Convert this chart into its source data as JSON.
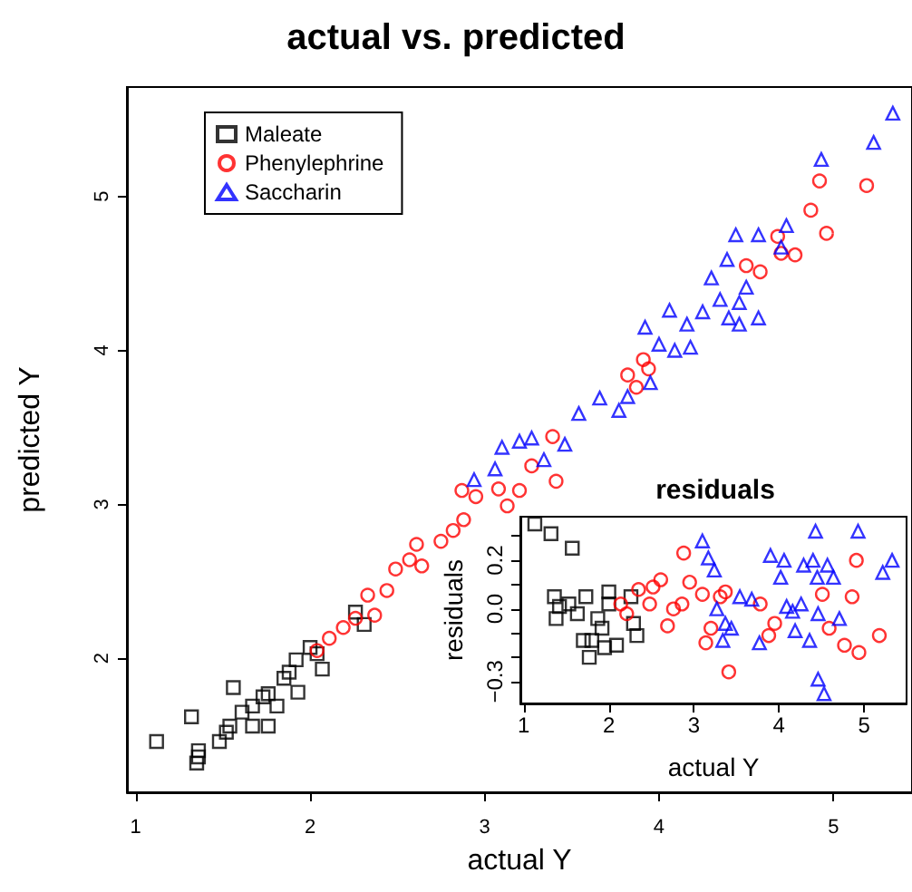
{
  "chart_data": [
    {
      "type": "scatter",
      "title": "actual vs. predicted",
      "xlabel": "actual Y",
      "ylabel": "predicted Y",
      "xlim": [
        0.95,
        5.45
      ],
      "ylim": [
        1.13,
        5.71
      ],
      "xticks": [
        1,
        2,
        3,
        4,
        5
      ],
      "yticks": [
        2,
        3,
        4,
        5
      ],
      "grid": false,
      "legend": "top left",
      "series": [
        {
          "name": "Maleate",
          "color": "#000000",
          "marker": "square",
          "x": [
            1.12,
            1.32,
            1.56,
            1.35,
            1.36,
            1.48,
            1.54,
            1.61,
            1.67,
            1.67,
            1.76,
            1.76,
            1.81,
            1.85,
            1.92,
            1.93,
            1.88,
            2.0,
            2.07,
            2.04,
            2.26,
            2.31,
            1.73,
            1.52,
            1.36
          ],
          "values": [
            1.46,
            1.62,
            1.81,
            1.32,
            1.4,
            1.46,
            1.56,
            1.65,
            1.69,
            1.56,
            1.56,
            1.77,
            1.69,
            1.87,
            1.99,
            1.78,
            1.91,
            2.07,
            1.93,
            2.03,
            2.3,
            2.22,
            1.75,
            1.52,
            1.36
          ]
        },
        {
          "name": "Phenylephrine",
          "color": "#ff0000",
          "marker": "circle",
          "x": [
            2.04,
            2.11,
            2.19,
            2.26,
            2.37,
            2.33,
            2.44,
            2.49,
            2.57,
            2.61,
            2.75,
            2.64,
            2.82,
            2.88,
            2.87,
            2.95,
            3.08,
            3.13,
            3.2,
            3.27,
            3.39,
            3.41,
            3.82,
            3.91,
            3.94,
            3.87,
            4.5,
            4.58,
            4.7,
            4.78,
            4.68,
            4.87,
            4.96,
            4.92,
            5.19
          ],
          "values": [
            2.05,
            2.13,
            2.2,
            2.26,
            2.28,
            2.41,
            2.44,
            2.58,
            2.64,
            2.74,
            2.76,
            2.6,
            2.83,
            2.9,
            3.09,
            3.05,
            3.1,
            2.99,
            3.09,
            3.25,
            3.44,
            3.15,
            3.84,
            3.94,
            3.88,
            3.76,
            4.55,
            4.51,
            4.63,
            4.62,
            4.74,
            4.91,
            4.76,
            5.1,
            5.07
          ]
        },
        {
          "name": "Saccharin",
          "color": "#0000ff",
          "marker": "triangle",
          "x": [
            2.94,
            3.06,
            3.1,
            3.2,
            3.27,
            3.34,
            3.46,
            3.54,
            3.66,
            3.77,
            3.82,
            3.95,
            3.92,
            4.0,
            4.06,
            4.09,
            4.18,
            4.16,
            4.25,
            4.3,
            4.35,
            4.39,
            4.4,
            4.46,
            4.46,
            4.5,
            4.57,
            4.44,
            4.57,
            4.73,
            4.7,
            4.93,
            5.23,
            5.34
          ],
          "values": [
            3.16,
            3.23,
            3.37,
            3.41,
            3.43,
            3.29,
            3.39,
            3.59,
            3.69,
            3.61,
            3.7,
            3.79,
            4.15,
            4.04,
            4.26,
            4.0,
            4.02,
            4.17,
            4.25,
            4.47,
            4.33,
            4.59,
            4.21,
            4.31,
            4.17,
            4.41,
            4.21,
            4.75,
            4.75,
            4.81,
            4.67,
            5.24,
            5.35,
            5.54
          ]
        }
      ]
    },
    {
      "type": "scatter",
      "title": "residuals",
      "xlabel": "actual Y",
      "ylabel": "residuals",
      "xlim": [
        0.96,
        5.5
      ],
      "ylim": [
        -0.39,
        0.38
      ],
      "xticks": [
        1,
        2,
        3,
        4,
        5
      ],
      "yticks": [
        {
          "value": -0.3,
          "label": "−0.3"
        },
        {
          "value": -0.2,
          "label": null
        },
        {
          "value": -0.1,
          "label": null
        },
        {
          "value": 0,
          "label": "0.0"
        },
        {
          "value": 0.1,
          "label": null
        },
        {
          "value": 0.2,
          "label": "0.2"
        },
        {
          "value": 0.3,
          "label": null
        }
      ],
      "grid": false,
      "series": [
        {
          "color": "#000000",
          "marker": "square",
          "x": [
            1.13,
            1.32,
            1.57,
            1.36,
            1.38,
            1.53,
            1.63,
            1.7,
            1.77,
            1.8,
            1.95,
            1.87,
            2.0,
            2.09,
            2.0,
            1.92,
            2.26,
            2.29,
            2.33,
            1.42,
            1.73
          ],
          "values": [
            0.35,
            0.31,
            0.25,
            0.05,
            -0.04,
            0.02,
            -0.02,
            -0.13,
            -0.2,
            -0.13,
            -0.16,
            -0.04,
            0.07,
            -0.15,
            0.02,
            -0.08,
            0.05,
            -0.06,
            -0.11,
            0.01,
            0.05
          ]
        },
        {
          "color": "#ff0000",
          "marker": "circle",
          "x": [
            2.14,
            2.21,
            2.35,
            2.52,
            2.61,
            2.48,
            2.69,
            2.76,
            2.86,
            2.88,
            2.95,
            3.1,
            3.14,
            3.2,
            3.31,
            3.41,
            3.37,
            3.78,
            3.88,
            3.95,
            4.51,
            4.59,
            4.77,
            4.86,
            4.91,
            4.94,
            5.18
          ],
          "values": [
            0.02,
            -0.02,
            0.08,
            0.09,
            0.12,
            0.02,
            -0.07,
            0.0,
            0.02,
            0.23,
            0.11,
            0.06,
            -0.14,
            -0.08,
            0.05,
            -0.26,
            0.07,
            0.02,
            -0.11,
            -0.06,
            0.06,
            -0.08,
            -0.15,
            0.05,
            0.2,
            -0.18,
            -0.11
          ]
        },
        {
          "color": "#0000ff",
          "marker": "triangle",
          "x": [
            3.1,
            3.17,
            3.24,
            3.27,
            3.37,
            3.44,
            3.34,
            3.54,
            3.68,
            3.77,
            3.9,
            4.06,
            4.02,
            4.09,
            4.19,
            4.26,
            4.29,
            4.36,
            4.43,
            4.4,
            4.45,
            4.46,
            4.53,
            4.57,
            4.64,
            4.71,
            4.93,
            5.22,
            5.33,
            4.46,
            4.16
          ],
          "values": [
            0.28,
            0.21,
            0.16,
            0.0,
            -0.06,
            -0.08,
            -0.13,
            0.05,
            0.04,
            -0.14,
            0.22,
            0.2,
            0.13,
            0.01,
            -0.09,
            0.02,
            0.18,
            -0.13,
            0.32,
            0.2,
            0.13,
            -0.29,
            -0.35,
            0.18,
            0.13,
            -0.04,
            0.32,
            0.15,
            0.2,
            -0.02,
            -0.01
          ]
        }
      ]
    }
  ]
}
